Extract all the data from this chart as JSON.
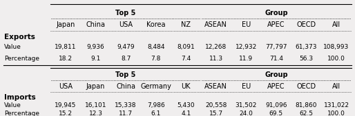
{
  "exports_top5_headers": [
    "Japan",
    "China",
    "USA",
    "Korea",
    "NZ"
  ],
  "exports_group_headers": [
    "ASEAN",
    "EU",
    "APEC",
    "OECD",
    "All"
  ],
  "exports_value": [
    "19,811",
    "9,936",
    "9,479",
    "8,484",
    "8,091",
    "12,268",
    "12,932",
    "77,797",
    "61,373",
    "108,993"
  ],
  "exports_pct": [
    "18.2",
    "9.1",
    "8.7",
    "7.8",
    "7.4",
    "11.3",
    "11.9",
    "71.4",
    "56.3",
    "100.0"
  ],
  "imports_top5_headers": [
    "USA",
    "Japan",
    "China",
    "Germany",
    "UK"
  ],
  "imports_group_headers": [
    "ASEAN",
    "EU",
    "APEC",
    "OECD",
    "All"
  ],
  "imports_value": [
    "19,945",
    "16,101",
    "15,338",
    "7,986",
    "5,430",
    "20,558",
    "31,502",
    "91,096",
    "81,860",
    "131,022"
  ],
  "imports_pct": [
    "15.2",
    "12.3",
    "11.7",
    "6.1",
    "4.1",
    "15.7",
    "24.0",
    "69.5",
    "62.5",
    "100.0"
  ],
  "bg_color": "#f0eeee",
  "header_fontsize": 7.0,
  "data_fontsize": 6.5,
  "label_fontsize": 7.5
}
